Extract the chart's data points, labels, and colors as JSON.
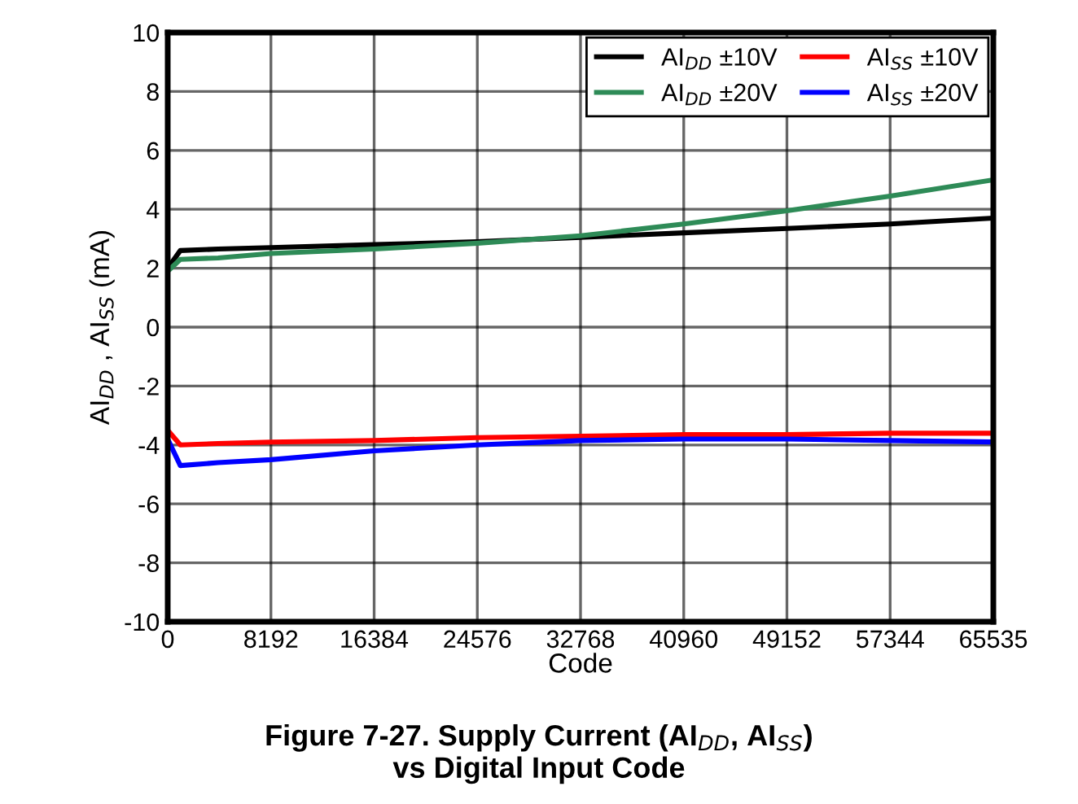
{
  "chart_data": {
    "type": "line",
    "title": "Figure 7-27. Supply Current (AI$_{DD}$, AI$_{SS}$)\nvs Digital Input Code",
    "xlabel": "Code",
    "ylabel": "AI$_{DD}$ , AI$_{SS}$ (mA)",
    "xlim": [
      0,
      65535
    ],
    "xticks": [
      0,
      8192,
      16384,
      24576,
      32768,
      40960,
      49152,
      57344,
      65535
    ],
    "ylim": [
      -10,
      10
    ],
    "yticks": [
      -10,
      -8,
      -6,
      -4,
      -2,
      0,
      2,
      4,
      6,
      8,
      10
    ],
    "grid": true,
    "legend": "top right",
    "x": [
      0,
      1000,
      4000,
      8192,
      16384,
      24576,
      32768,
      40960,
      49152,
      57344,
      65535
    ],
    "series": [
      {
        "name": "AI$_{DD}$ ±10V",
        "color": "#000000",
        "values": [
          2.0,
          2.6,
          2.65,
          2.7,
          2.8,
          2.9,
          3.05,
          3.2,
          3.35,
          3.5,
          3.7
        ]
      },
      {
        "name": "AI$_{DD}$ ±20V",
        "color": "#2e8b57",
        "values": [
          1.9,
          2.3,
          2.35,
          2.5,
          2.65,
          2.85,
          3.1,
          3.5,
          3.95,
          4.45,
          5.0
        ]
      },
      {
        "name": "AI$_{SS}$ ±10V",
        "color": "#ff0000",
        "values": [
          -3.5,
          -4.0,
          -3.95,
          -3.9,
          -3.85,
          -3.75,
          -3.7,
          -3.65,
          -3.65,
          -3.6,
          -3.6
        ]
      },
      {
        "name": "AI$_{SS}$ ±20V",
        "color": "#0000ff",
        "values": [
          -3.8,
          -4.7,
          -4.6,
          -4.5,
          -4.2,
          -4.0,
          -3.85,
          -3.8,
          -3.8,
          -3.85,
          -3.9
        ]
      }
    ]
  }
}
